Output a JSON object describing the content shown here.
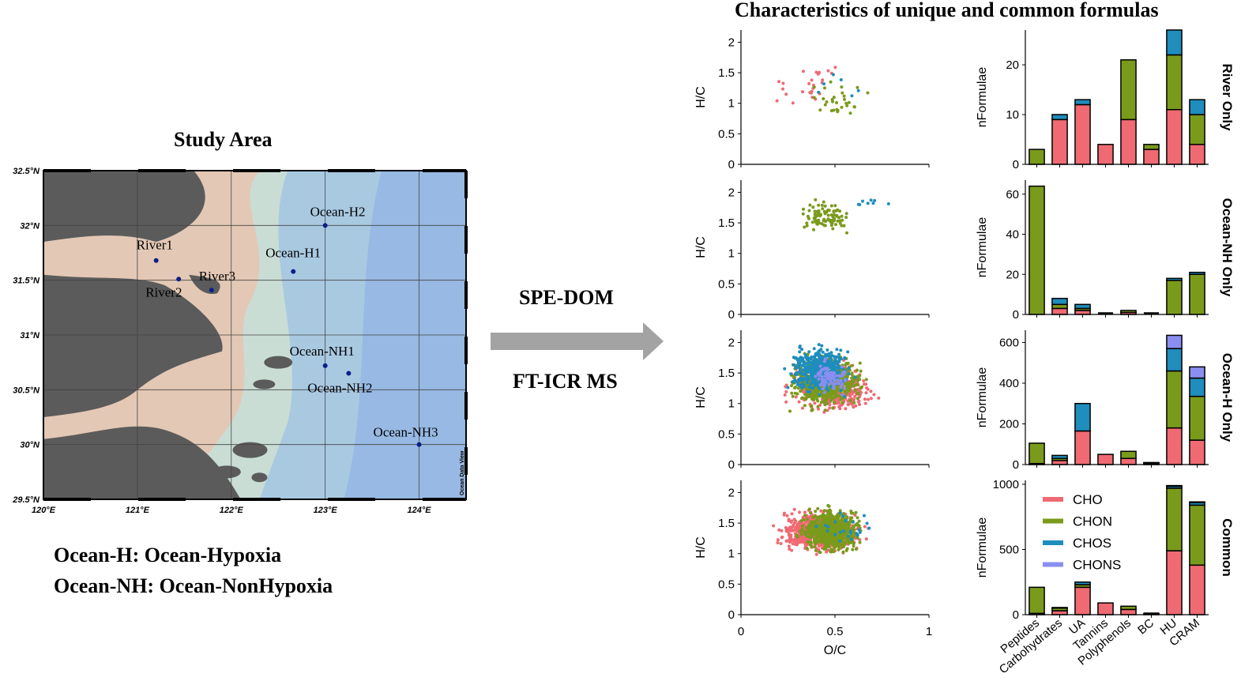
{
  "study_area": {
    "title": "Study Area",
    "lat_labels": [
      "32.5°N",
      "32°N",
      "31.5°N",
      "31°N",
      "30.5°N",
      "30°N",
      "29.5°N"
    ],
    "lon_labels": [
      "120°E",
      "121°E",
      "122°E",
      "123°E",
      "124°E"
    ],
    "watermark": "Ocean Data View",
    "stations": [
      {
        "name": "River1",
        "lon": 121.2,
        "lat": 31.68
      },
      {
        "name": "River2",
        "lon": 121.44,
        "lat": 31.51
      },
      {
        "name": "River3",
        "lon": 121.79,
        "lat": 31.41
      },
      {
        "name": "Ocean-H1",
        "lon": 122.66,
        "lat": 31.58
      },
      {
        "name": "Ocean-H2",
        "lon": 123.0,
        "lat": 32.0
      },
      {
        "name": "Ocean-NH1",
        "lon": 123.0,
        "lat": 30.72
      },
      {
        "name": "Ocean-NH2",
        "lon": 123.25,
        "lat": 30.65
      },
      {
        "name": "Ocean-NH3",
        "lon": 124.0,
        "lat": 30.0
      }
    ],
    "legend": [
      "Ocean-H: Ocean-Hypoxia",
      "Ocean-NH: Ocean-NonHypoxia"
    ]
  },
  "methods": [
    "SPE-DOM",
    "FT-ICR MS"
  ],
  "chart_data": {
    "title": "Characteristics of unique and common formulas",
    "type": "scatter+stacked-bar",
    "series_names": [
      "CHO",
      "CHON",
      "CHOS",
      "CHONS"
    ],
    "colors": {
      "CHO": "#ef6a72",
      "CHON": "#7a9a1c",
      "CHOS": "#1f8dbd",
      "CHONS": "#8a8ef0"
    },
    "scatter": {
      "xlabel": "O/C",
      "ylabel": "H/C",
      "xlim": [
        0,
        1
      ],
      "ylim": [
        0,
        2.2
      ],
      "xticks": [
        "0",
        "0.5",
        "1"
      ],
      "yticks": [
        "0",
        "0.5",
        "1",
        "1.5",
        "2"
      ]
    },
    "bar": {
      "ylabel": "nFormulae",
      "categories": [
        "Peptides",
        "Carbohydrates",
        "UA",
        "Tannins",
        "Polyphenols",
        "BC",
        "HU",
        "CRAM"
      ]
    },
    "rows": [
      {
        "label": "River Only",
        "ymax": 27,
        "yticks": [
          0,
          10,
          20
        ],
        "stacks": {
          "CHO": [
            0,
            9,
            12,
            4,
            9,
            3,
            11,
            4
          ],
          "CHON": [
            3,
            0,
            0,
            0,
            12,
            1,
            11,
            6
          ],
          "CHOS": [
            0,
            1,
            1,
            0,
            0,
            0,
            5,
            3
          ],
          "CHONS": [
            0,
            0,
            0,
            0,
            0,
            0,
            0,
            0
          ]
        }
      },
      {
        "label": "Ocean-NH Only",
        "ymax": 67,
        "yticks": [
          0,
          20,
          40,
          60
        ],
        "stacks": {
          "CHO": [
            0,
            3,
            2,
            0,
            1,
            0,
            0,
            0
          ],
          "CHON": [
            64,
            2,
            1,
            0,
            1,
            0,
            17,
            20
          ],
          "CHOS": [
            0,
            3,
            2,
            0,
            0,
            0,
            1,
            1
          ],
          "CHONS": [
            0,
            0,
            0,
            0,
            0,
            0,
            0,
            0
          ]
        }
      },
      {
        "label": "Ocean-H Only",
        "ymax": 660,
        "yticks": [
          0,
          200,
          400,
          600
        ],
        "stacks": {
          "CHO": [
            5,
            20,
            165,
            50,
            30,
            5,
            180,
            120
          ],
          "CHON": [
            100,
            10,
            0,
            0,
            35,
            3,
            280,
            215
          ],
          "CHOS": [
            0,
            15,
            135,
            0,
            0,
            2,
            110,
            90
          ],
          "CHONS": [
            0,
            0,
            0,
            0,
            0,
            0,
            65,
            55
          ]
        }
      },
      {
        "label": "Common",
        "ymax": 1030,
        "yticks": [
          0,
          500,
          1000
        ],
        "stacks": {
          "CHO": [
            10,
            30,
            210,
            90,
            40,
            10,
            490,
            380
          ],
          "CHON": [
            200,
            20,
            20,
            0,
            25,
            0,
            480,
            460
          ],
          "CHOS": [
            0,
            5,
            20,
            0,
            0,
            0,
            15,
            20
          ],
          "CHONS": [
            0,
            0,
            0,
            0,
            0,
            0,
            5,
            5
          ]
        }
      }
    ]
  }
}
